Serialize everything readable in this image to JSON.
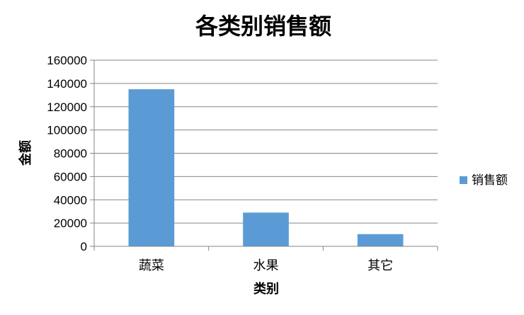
{
  "chart_data": {
    "type": "bar",
    "title": "各类别销售额",
    "xlabel": "类别",
    "ylabel": "金额",
    "categories": [
      "蔬菜",
      "水果",
      "其它"
    ],
    "series": [
      {
        "name": "销售额",
        "values": [
          135000,
          29000,
          10500
        ],
        "color": "#5B9BD5"
      }
    ],
    "ylim": [
      0,
      160000
    ],
    "ytick_step": 20000,
    "grid": true,
    "legend": "right"
  }
}
